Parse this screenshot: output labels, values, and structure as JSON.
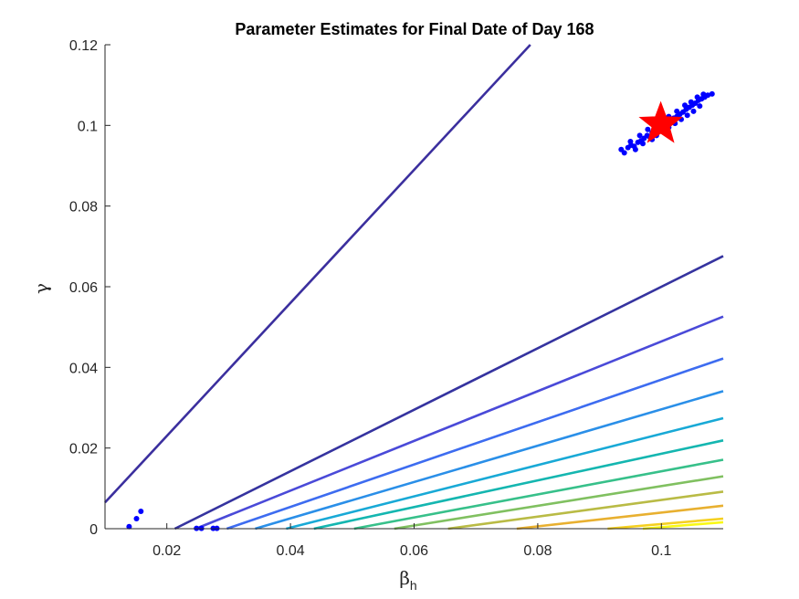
{
  "chart_data": {
    "type": "line",
    "title": "Parameter Estimates for Final Date of Day 168",
    "xlabel": "β",
    "xlabel_subscript": "h",
    "ylabel": "γ",
    "xlim": [
      0.01,
      0.11
    ],
    "ylim": [
      0,
      0.12
    ],
    "x_ticks": [
      0.02,
      0.04,
      0.06,
      0.08,
      0.1
    ],
    "x_tick_labels": [
      "0.02",
      "0.04",
      "0.06",
      "0.08",
      "0.1"
    ],
    "y_ticks": [
      0,
      0.02,
      0.04,
      0.06,
      0.08,
      0.1,
      0.12
    ],
    "y_tick_labels": [
      "0",
      "0.02",
      "0.04",
      "0.06",
      "0.08",
      "0.1",
      "0.12"
    ],
    "grid": false,
    "contours": [
      {
        "color": "#3b2f9e",
        "points": [
          [
            0.01,
            0.0065
          ],
          [
            0.0788,
            0.12
          ]
        ]
      },
      {
        "color": "#35339f",
        "points": [
          [
            0.0213,
            0
          ],
          [
            0.11,
            0.0676
          ]
        ]
      },
      {
        "color": "#4a4ad8",
        "points": [
          [
            0.0247,
            0
          ],
          [
            0.11,
            0.0526
          ]
        ]
      },
      {
        "color": "#3d6cf0",
        "points": [
          [
            0.0297,
            0
          ],
          [
            0.11,
            0.0422
          ]
        ]
      },
      {
        "color": "#2a8fe8",
        "points": [
          [
            0.0343,
            0
          ],
          [
            0.11,
            0.0341
          ]
        ]
      },
      {
        "color": "#18a9d6",
        "points": [
          [
            0.0393,
            0
          ],
          [
            0.11,
            0.0274
          ]
        ]
      },
      {
        "color": "#14b6b0",
        "points": [
          [
            0.0438,
            0
          ],
          [
            0.11,
            0.0219
          ]
        ]
      },
      {
        "color": "#37c08a",
        "points": [
          [
            0.0503,
            0
          ],
          [
            0.11,
            0.0171
          ]
        ]
      },
      {
        "color": "#80c060",
        "points": [
          [
            0.0568,
            0
          ],
          [
            0.11,
            0.013
          ]
        ]
      },
      {
        "color": "#b9bb45",
        "points": [
          [
            0.0655,
            0
          ],
          [
            0.11,
            0.0092
          ]
        ]
      },
      {
        "color": "#e8b030",
        "points": [
          [
            0.0766,
            0
          ],
          [
            0.11,
            0.0057
          ]
        ]
      },
      {
        "color": "#f5d020",
        "points": [
          [
            0.0913,
            0
          ],
          [
            0.11,
            0.0025
          ]
        ]
      },
      {
        "color": "#f9f915",
        "points": [
          [
            0.097,
            0
          ],
          [
            0.11,
            0.0016
          ]
        ]
      }
    ],
    "scatter": {
      "color": "#0000ff",
      "points": [
        [
          0.0139,
          0.0005
        ],
        [
          0.0151,
          0.0025
        ],
        [
          0.0158,
          0.0043
        ],
        [
          0.0248,
          0.0001
        ],
        [
          0.0256,
          0.0001
        ],
        [
          0.0275,
          0.0001
        ],
        [
          0.0281,
          0.0001
        ],
        [
          0.0935,
          0.094
        ],
        [
          0.094,
          0.0932
        ],
        [
          0.0946,
          0.0945
        ],
        [
          0.0951,
          0.0951
        ],
        [
          0.0956,
          0.0948
        ],
        [
          0.0962,
          0.0958
        ],
        [
          0.0967,
          0.0962
        ],
        [
          0.0972,
          0.0968
        ],
        [
          0.0977,
          0.0975
        ],
        [
          0.0981,
          0.0972
        ],
        [
          0.0985,
          0.0982
        ],
        [
          0.099,
          0.0988
        ],
        [
          0.0995,
          0.0991
        ],
        [
          0.1,
          0.0998
        ],
        [
          0.1005,
          0.1002
        ],
        [
          0.101,
          0.1008
        ],
        [
          0.1015,
          0.1012
        ],
        [
          0.102,
          0.1018
        ],
        [
          0.1025,
          0.1022
        ],
        [
          0.103,
          0.1028
        ],
        [
          0.1035,
          0.1033
        ],
        [
          0.104,
          0.104
        ],
        [
          0.1045,
          0.1045
        ],
        [
          0.105,
          0.105
        ],
        [
          0.1055,
          0.1055
        ],
        [
          0.106,
          0.1062
        ],
        [
          0.1065,
          0.1066
        ],
        [
          0.107,
          0.107
        ],
        [
          0.1075,
          0.1075
        ],
        [
          0.1082,
          0.1078
        ],
        [
          0.0958,
          0.094
        ],
        [
          0.097,
          0.0955
        ],
        [
          0.0985,
          0.0965
        ],
        [
          0.0992,
          0.0975
        ],
        [
          0.1003,
          0.0985
        ],
        [
          0.1012,
          0.0995
        ],
        [
          0.1022,
          0.1005
        ],
        [
          0.1032,
          0.1015
        ],
        [
          0.1042,
          0.1025
        ],
        [
          0.1052,
          0.1035
        ],
        [
          0.1062,
          0.1048
        ],
        [
          0.095,
          0.096
        ],
        [
          0.0965,
          0.0975
        ],
        [
          0.0978,
          0.099
        ],
        [
          0.099,
          0.1
        ],
        [
          0.1,
          0.101
        ],
        [
          0.1012,
          0.1022
        ],
        [
          0.1025,
          0.1035
        ],
        [
          0.1038,
          0.105
        ],
        [
          0.1048,
          0.1058
        ],
        [
          0.1058,
          0.107
        ],
        [
          0.1068,
          0.1077
        ]
      ]
    },
    "marker": {
      "type": "star",
      "color": "#ff0000",
      "x": 0.0999,
      "y": 0.1003
    }
  }
}
